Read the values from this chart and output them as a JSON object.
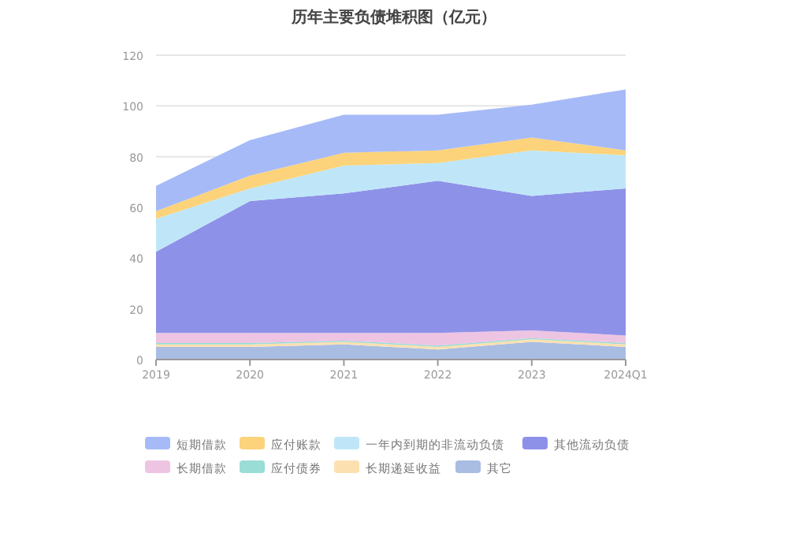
{
  "chart_data": {
    "type": "area",
    "stacked": true,
    "title": "历年主要负债堆积图（亿元）",
    "categories": [
      "2019",
      "2020",
      "2021",
      "2022",
      "2023",
      "2024Q1"
    ],
    "ylim": [
      0,
      120
    ],
    "yticks": [
      0,
      20,
      40,
      60,
      80,
      100,
      120
    ],
    "grid": "y",
    "legend": "bottom",
    "series": [
      {
        "name": "其它",
        "color": "#a9bde3",
        "values": [
          5,
          5,
          6,
          4,
          7,
          5
        ]
      },
      {
        "name": "长期递延收益",
        "color": "#fde0b0",
        "values": [
          1,
          1,
          1,
          1,
          1,
          1
        ]
      },
      {
        "name": "应付债券",
        "color": "#9adcd6",
        "values": [
          0.5,
          0.5,
          0.5,
          0.5,
          0.5,
          0.5
        ]
      },
      {
        "name": "长期借款",
        "color": "#eec4e3",
        "values": [
          4,
          4,
          3,
          5,
          3,
          3
        ]
      },
      {
        "name": "其他流动负债",
        "color": "#8e91e8",
        "values": [
          32,
          52,
          55,
          60,
          53,
          58
        ]
      },
      {
        "name": "一年内到期的非流动负债",
        "color": "#bfe6f8",
        "values": [
          13,
          5,
          11,
          7,
          18,
          13
        ]
      },
      {
        "name": "应付账款",
        "color": "#fcd37a",
        "values": [
          3,
          5,
          5,
          5,
          5,
          2
        ]
      },
      {
        "name": "短期借款",
        "color": "#a6baf7",
        "values": [
          10,
          14,
          15,
          14,
          13,
          24
        ]
      }
    ]
  }
}
